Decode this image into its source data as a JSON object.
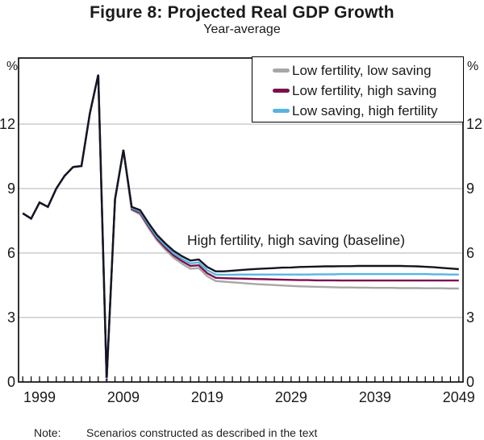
{
  "page": {
    "title": "Figure 8: Projected Real GDP Growth",
    "subtitle": "Year-average",
    "note_label": "Note:",
    "note_text": "Scenarios constructed as described in the text"
  },
  "axes": {
    "unit_left": "%",
    "unit_right": "%"
  },
  "chart_data": {
    "type": "line",
    "title": "Figure 8: Projected Real GDP Growth",
    "subtitle": "Year-average",
    "xlabel": "",
    "ylabel": "%",
    "ylim": [
      0,
      15
    ],
    "xlim": [
      1996.5,
      2049.5
    ],
    "y_ticks": [
      0,
      3,
      6,
      9,
      12
    ],
    "x_ticks": [
      1999,
      2009,
      2019,
      2029,
      2039,
      2049
    ],
    "grid": "horizontal gridlines at 3,6,9,12; dual y-axis labels; yearly minor ticks on x-axis",
    "legend_position": "boxed, top-right inside plot",
    "annotation": {
      "text": "High fertility, high saving (baseline)",
      "x": 2017,
      "y": 6.6
    },
    "colors": {
      "baseline": "#15151f",
      "high_fertility_low_saving": "#57b5e1",
      "low_fertility_high_saving": "#7c104c",
      "low_fertility_low_saving": "#a7a7a7",
      "gridline": "#b3b3b3"
    },
    "years": [
      1997,
      1998,
      1999,
      2000,
      2001,
      2002,
      2003,
      2004,
      2005,
      2006,
      2007,
      2008,
      2009,
      2010,
      2011,
      2012,
      2013,
      2014,
      2015,
      2016,
      2017,
      2018,
      2019,
      2020,
      2021,
      2022,
      2023,
      2024,
      2025,
      2026,
      2027,
      2028,
      2029,
      2030,
      2031,
      2032,
      2033,
      2034,
      2035,
      2036,
      2037,
      2038,
      2039,
      2040,
      2041,
      2042,
      2043,
      2044,
      2045,
      2046,
      2047,
      2048,
      2049
    ],
    "series": [
      {
        "name": "Low fertility, low saving",
        "color": "#a7a7a7",
        "in_legend": true,
        "values": [
          7.85,
          7.6,
          8.35,
          8.15,
          9.0,
          9.6,
          10.0,
          10.05,
          12.5,
          14.3,
          0.12,
          8.5,
          10.8,
          8.0,
          7.8,
          7.17,
          6.59,
          6.16,
          5.78,
          5.5,
          5.27,
          5.3,
          4.92,
          4.7,
          4.67,
          4.64,
          4.61,
          4.58,
          4.55,
          4.53,
          4.51,
          4.49,
          4.47,
          4.45,
          4.44,
          4.43,
          4.42,
          4.41,
          4.4,
          4.4,
          4.39,
          4.39,
          4.38,
          4.38,
          4.38,
          4.37,
          4.37,
          4.37,
          4.36,
          4.36,
          4.36,
          4.35,
          4.35
        ]
      },
      {
        "name": "Low fertility, high saving",
        "color": "#7c104c",
        "in_legend": true,
        "values": [
          7.85,
          7.6,
          8.35,
          8.15,
          9.0,
          9.6,
          10.0,
          10.05,
          12.5,
          14.3,
          0.05,
          8.5,
          10.8,
          8.05,
          7.87,
          7.25,
          6.68,
          6.26,
          5.89,
          5.62,
          5.4,
          5.43,
          5.06,
          4.85,
          4.83,
          4.82,
          4.81,
          4.8,
          4.79,
          4.78,
          4.77,
          4.76,
          4.75,
          4.74,
          4.74,
          4.73,
          4.73,
          4.73,
          4.72,
          4.72,
          4.72,
          4.72,
          4.72,
          4.72,
          4.72,
          4.72,
          4.72,
          4.72,
          4.72,
          4.72,
          4.72,
          4.72,
          4.72
        ]
      },
      {
        "name": "Low saving, high fertility",
        "color": "#57b5e1",
        "in_legend": true,
        "values": [
          7.85,
          7.6,
          8.35,
          8.15,
          9.0,
          9.6,
          10.0,
          10.05,
          12.5,
          14.3,
          0.15,
          8.5,
          10.8,
          8.1,
          7.93,
          7.32,
          6.76,
          6.35,
          5.99,
          5.73,
          5.52,
          5.56,
          5.2,
          5.0,
          4.99,
          4.99,
          5.0,
          5.0,
          5.0,
          5.0,
          5.0,
          5.0,
          5.0,
          5.0,
          5.0,
          5.01,
          5.01,
          5.01,
          5.02,
          5.02,
          5.02,
          5.02,
          5.02,
          5.02,
          5.02,
          5.02,
          5.02,
          5.02,
          5.02,
          5.01,
          5.01,
          5.0,
          5.0
        ]
      },
      {
        "name": "High fertility, high saving (baseline)",
        "color": "#15151f",
        "in_legend": false,
        "values": [
          7.85,
          7.6,
          8.35,
          8.15,
          9.0,
          9.6,
          10.0,
          10.05,
          12.5,
          14.3,
          0.2,
          8.5,
          10.8,
          8.15,
          8.0,
          7.4,
          6.85,
          6.45,
          6.1,
          5.85,
          5.65,
          5.7,
          5.35,
          5.15,
          5.15,
          5.18,
          5.21,
          5.24,
          5.26,
          5.28,
          5.3,
          5.32,
          5.33,
          5.35,
          5.36,
          5.37,
          5.38,
          5.38,
          5.39,
          5.39,
          5.4,
          5.4,
          5.4,
          5.4,
          5.4,
          5.4,
          5.39,
          5.38,
          5.36,
          5.34,
          5.31,
          5.28,
          5.25
        ]
      }
    ]
  }
}
